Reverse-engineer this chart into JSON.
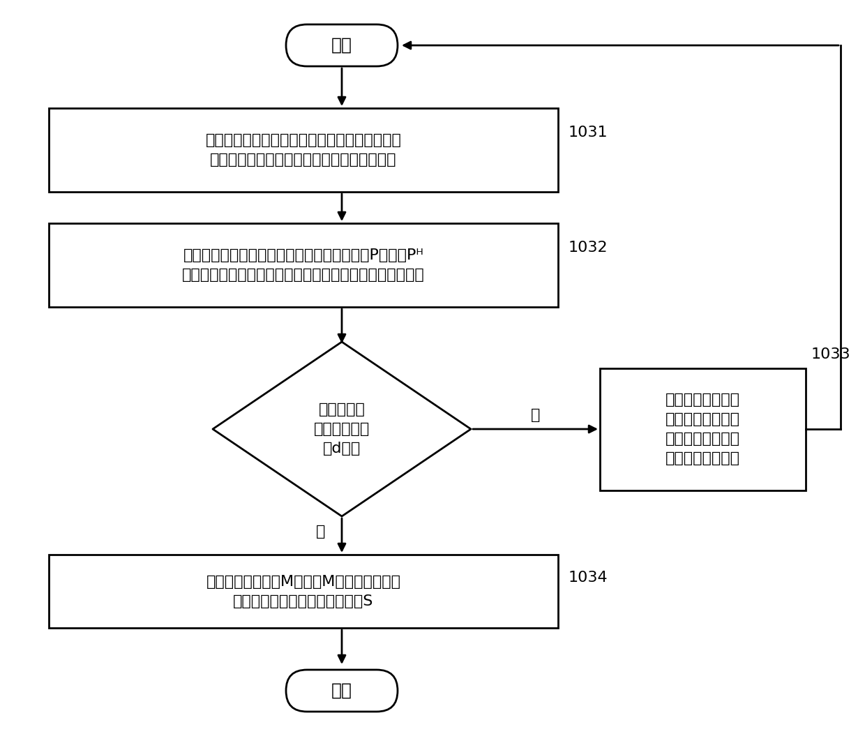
{
  "bg_color": "#ffffff",
  "line_color": "#000000",
  "box_fill": "#ffffff",
  "text_color": "#000000",
  "font_size_main": 16,
  "font_size_label": 15,
  "start_end_text": [
    "开始",
    "结束"
  ],
  "box_texts": [
    "对输入信号相应时间段对应的信号矩阵进行奇异\n値分解、秩一分解，获得波束赋形矩阵的一列",
    "利用波束赋形矩阵的一列的正交基，构造矩阵P，使用Pᴴ\n对输入信号进行滤波，获得降维的不包含第一信号的新信号",
    "构造波束赋形矩阵M，使用M的广义逆对原接\n收信号进行滤波，获得分离信号S",
    "将获得的降维后不\n包含第一信号的新\n信号作为下一次迭\n代过程的输入信号"
  ],
  "diamond_text": "是否得到了\n波束赋形矩阵\n的d个列",
  "labels": [
    "1031",
    "1032",
    "1033",
    "1034"
  ],
  "yes_text": "是",
  "no_text": "否",
  "lw": 2.0
}
